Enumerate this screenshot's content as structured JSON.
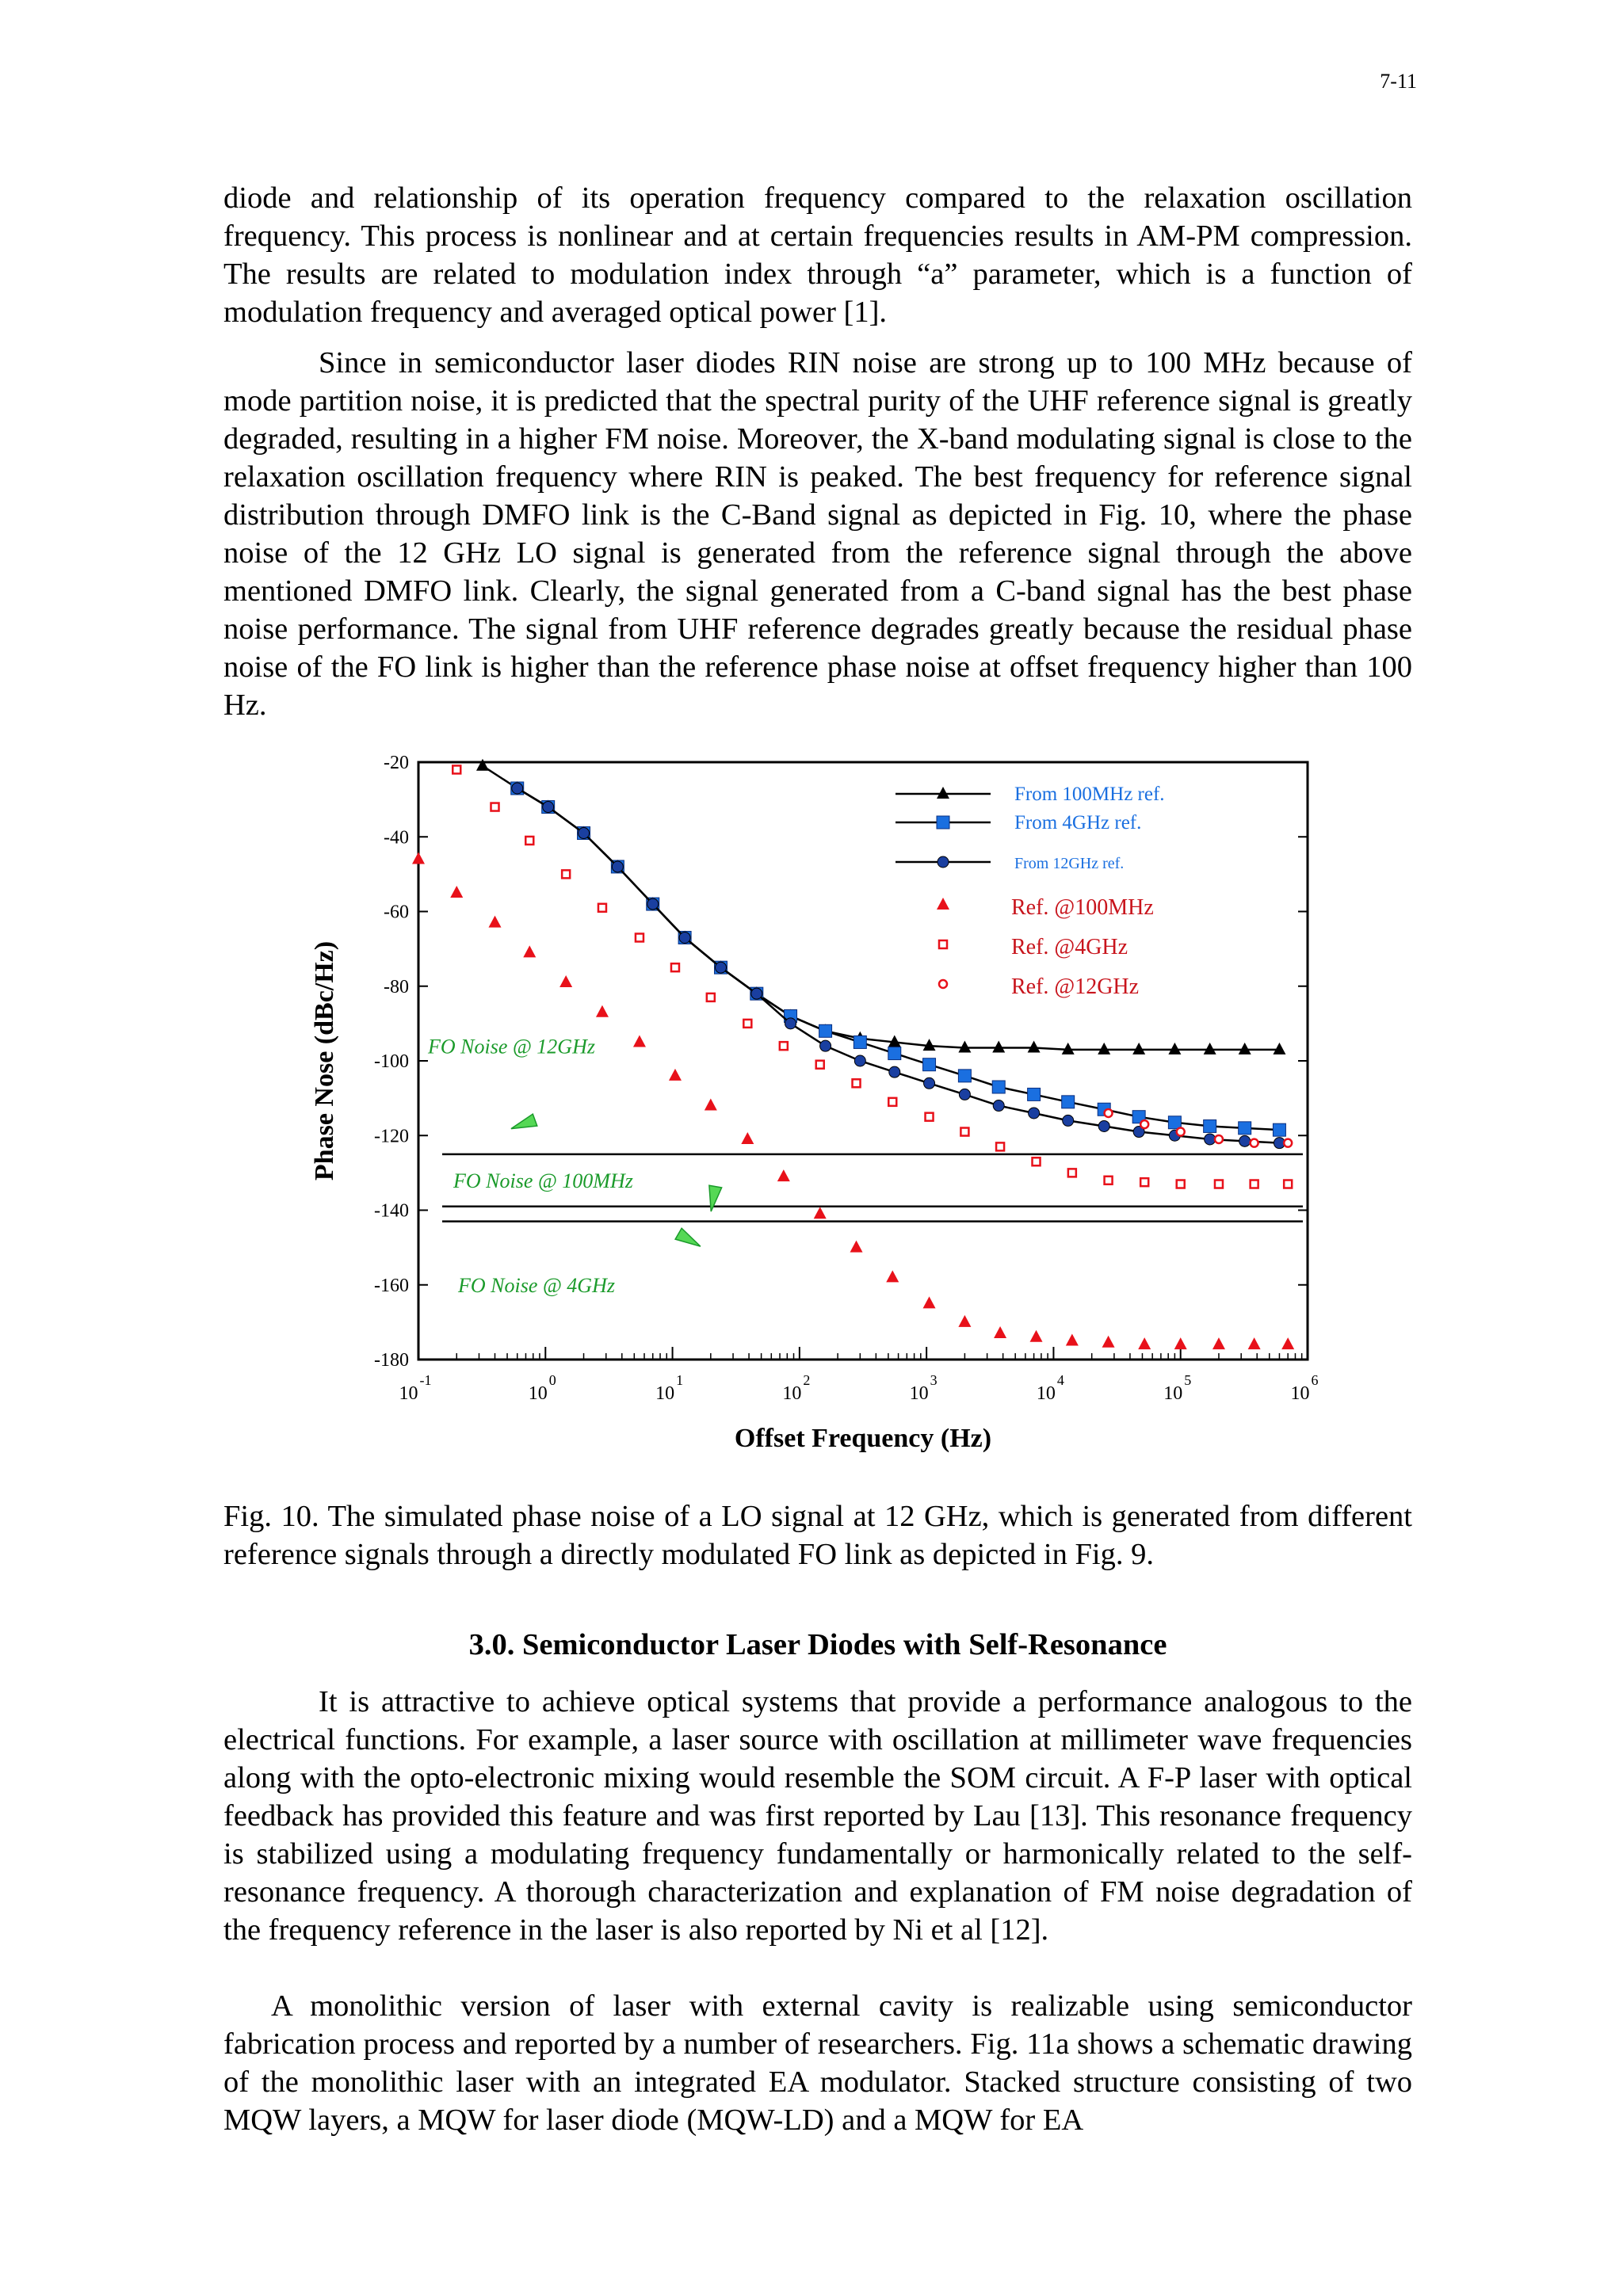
{
  "page_number": "7-11",
  "paragraphs": [
    "diode and relationship of its operation frequency compared to the relaxation oscillation frequency. This process is nonlinear and at certain frequencies results in AM-PM compression. The results are related to modulation index through “a” parameter, which is a function of modulation frequency and averaged optical power [1].",
    "Since in semiconductor laser diodes RIN noise are strong up to 100 MHz because of mode partition noise, it is predicted that the spectral purity of the UHF reference signal is greatly degraded, resulting in a higher FM noise. Moreover, the X-band modulating signal is close to the relaxation oscillation frequency where RIN is peaked. The best frequency for reference signal distribution through DMFO link is the C-Band signal as depicted in Fig. 10, where the phase noise of the 12 GHz LO signal is generated from the reference signal through the above mentioned DMFO link. Clearly, the signal generated from a C-band signal has the best phase noise performance. The signal from UHF reference degrades greatly because the residual phase noise of the FO link is higher than the reference phase noise at offset frequency higher than 100 Hz.",
    "It is attractive to achieve optical systems that provide a performance analogous to the electrical functions. For example, a laser source with oscillation at millimeter wave frequencies along with the opto-electronic mixing would resemble the SOM circuit. A F-P laser with optical feedback has provided this feature and was first reported by Lau [13]. This resonance frequency is stabilized using a modulating frequency fundamentally or harmonically related to the self-resonance frequency. A thorough characterization and explanation of FM noise degradation of the frequency reference in the laser is also reported by Ni et al [12].",
    "A monolithic version of laser with external cavity is realizable using semiconductor fabrication process and reported by a number of researchers. Fig. 11a shows a schematic drawing of the monolithic laser with an integrated EA modulator. Stacked structure consisting of two MQW layers, a MQW for laser diode (MQW-LD) and a MQW for EA"
  ],
  "caption": "Fig. 10. The simulated phase noise of a LO signal at 12 GHz, which is generated from different reference signals through a directly modulated FO link as depicted in Fig. 9.",
  "section_heading": "3.0. Semiconductor Laser Diodes with Self-Resonance",
  "chart_data": {
    "type": "scatter",
    "xlabel": "Offset Frequency (Hz)",
    "ylabel": "Phase Nose (dBc/Hz)",
    "x_scale": "log",
    "xlim": [
      0.1,
      1000000
    ],
    "ylim": [
      -180,
      -20
    ],
    "x_ticks": [
      {
        "value": 0.1,
        "base": "10",
        "exp": "-1"
      },
      {
        "value": 1,
        "base": "10",
        "exp": "0"
      },
      {
        "value": 10,
        "base": "10",
        "exp": "1"
      },
      {
        "value": 100,
        "base": "10",
        "exp": "2"
      },
      {
        "value": 1000,
        "base": "10",
        "exp": "3"
      },
      {
        "value": 10000,
        "base": "10",
        "exp": "4"
      },
      {
        "value": 100000,
        "base": "10",
        "exp": "5"
      },
      {
        "value": 1000000,
        "base": "10",
        "exp": "6"
      }
    ],
    "y_ticks": [
      {
        "value": -20,
        "label": "-20"
      },
      {
        "value": -40,
        "label": "-40"
      },
      {
        "value": -60,
        "label": "-60"
      },
      {
        "value": -80,
        "label": "-80"
      },
      {
        "value": -100,
        "label": "-100"
      },
      {
        "value": -120,
        "label": "-120"
      },
      {
        "value": -140,
        "label": "-140"
      },
      {
        "value": -160,
        "label": "-160"
      },
      {
        "value": -180,
        "label": "-180"
      }
    ],
    "series": [
      {
        "name": "From 100MHz ref.",
        "marker": "triangle-filled",
        "color": "#000000",
        "line": true,
        "x": [
          0.32,
          0.6,
          1.05,
          2.0,
          3.7,
          7,
          12.5,
          24,
          46,
          85,
          160,
          300,
          560,
          1050,
          2000,
          3700,
          7000,
          13000,
          25000,
          47000,
          90000,
          170000,
          320000,
          600000
        ],
        "y": [
          -21,
          -27,
          -32,
          -39,
          -48,
          -58,
          -67,
          -75,
          -82,
          -88,
          -92,
          -94,
          -95,
          -96,
          -96.5,
          -96.5,
          -96.5,
          -97,
          -97,
          -97,
          -97,
          -97,
          -97,
          -97
        ]
      },
      {
        "name": "From 4GHz ref.",
        "marker": "square-filled",
        "color": "#1a6fe0",
        "line": true,
        "x": [
          0.6,
          1.05,
          2.0,
          3.7,
          7,
          12.5,
          24,
          46,
          85,
          160,
          300,
          560,
          1050,
          2000,
          3700,
          7000,
          13000,
          25000,
          47000,
          90000,
          170000,
          320000,
          600000
        ],
        "y": [
          -27,
          -32,
          -39,
          -48,
          -58,
          -67,
          -75,
          -82,
          -88,
          -92,
          -95,
          -98,
          -101,
          -104,
          -107,
          -109,
          -111,
          -113,
          -115,
          -116.5,
          -117.5,
          -118,
          -118.5
        ]
      },
      {
        "name": "From 12GHz ref.",
        "marker": "circle-filled",
        "color": "#1a3fa0",
        "line": true,
        "x": [
          0.6,
          1.05,
          2.0,
          3.7,
          7,
          12.5,
          24,
          46,
          85,
          160,
          300,
          560,
          1050,
          2000,
          3700,
          7000,
          13000,
          25000,
          47000,
          90000,
          170000,
          320000,
          600000
        ],
        "y": [
          -27,
          -32,
          -39,
          -48,
          -58,
          -67,
          -75,
          -82,
          -90,
          -96,
          -100,
          -103,
          -106,
          -109,
          -112,
          -114,
          -116,
          -117.5,
          -119,
          -120,
          -121,
          -121.5,
          -122
        ]
      },
      {
        "name": "Ref. @100MHz",
        "marker": "triangle-filled",
        "color": "#e8111a",
        "line": false,
        "x": [
          0.1,
          0.2,
          0.4,
          0.75,
          1.45,
          2.8,
          5.5,
          10.5,
          20,
          39,
          75,
          145,
          280,
          540,
          1050,
          2000,
          3800,
          7300,
          14000,
          27000,
          52000,
          100000,
          200000,
          380000,
          700000
        ],
        "y": [
          -46,
          -55,
          -63,
          -71,
          -79,
          -87,
          -95,
          -104,
          -112,
          -121,
          -131,
          -141,
          -150,
          -158,
          -165,
          -170,
          -173,
          -174,
          -175,
          -175.5,
          -176,
          -176,
          -176,
          -176,
          -176
        ]
      },
      {
        "name": "Ref. @4GHz",
        "marker": "square-open",
        "color": "#e8111a",
        "line": false,
        "x": [
          0.2,
          0.4,
          0.75,
          1.45,
          2.8,
          5.5,
          10.5,
          20,
          39,
          75,
          145,
          280,
          540,
          1050,
          2000,
          3800,
          7300,
          14000,
          27000,
          52000,
          100000,
          200000,
          380000,
          700000
        ],
        "y": [
          -22,
          -32,
          -41,
          -50,
          -59,
          -67,
          -75,
          -83,
          -90,
          -96,
          -101,
          -106,
          -111,
          -115,
          -119,
          -123,
          -127,
          -130,
          -132,
          -132.5,
          -133,
          -133,
          -133,
          -133
        ]
      },
      {
        "name": "Ref. @12GHz",
        "marker": "circle-open",
        "color": "#e8111a",
        "line": false,
        "x": [
          27000,
          52000,
          100000,
          200000,
          380000,
          700000
        ],
        "y": [
          -114,
          -117,
          -119,
          -121,
          -122,
          -122
        ]
      }
    ],
    "fo_noise": [
      {
        "label": "FO Noise @ 12GHz",
        "level": -125
      },
      {
        "label": "FO Noise @ 100MHz",
        "level": -139
      },
      {
        "label": "FO Noise @ 4GHz",
        "level": -143
      }
    ],
    "fo_noise_label_color": "#1a9a2a",
    "legend_position": "top-right",
    "legend_text_colors": {
      "derived": "#1a6fe0",
      "reference": "#c8141c"
    },
    "grid": false
  }
}
